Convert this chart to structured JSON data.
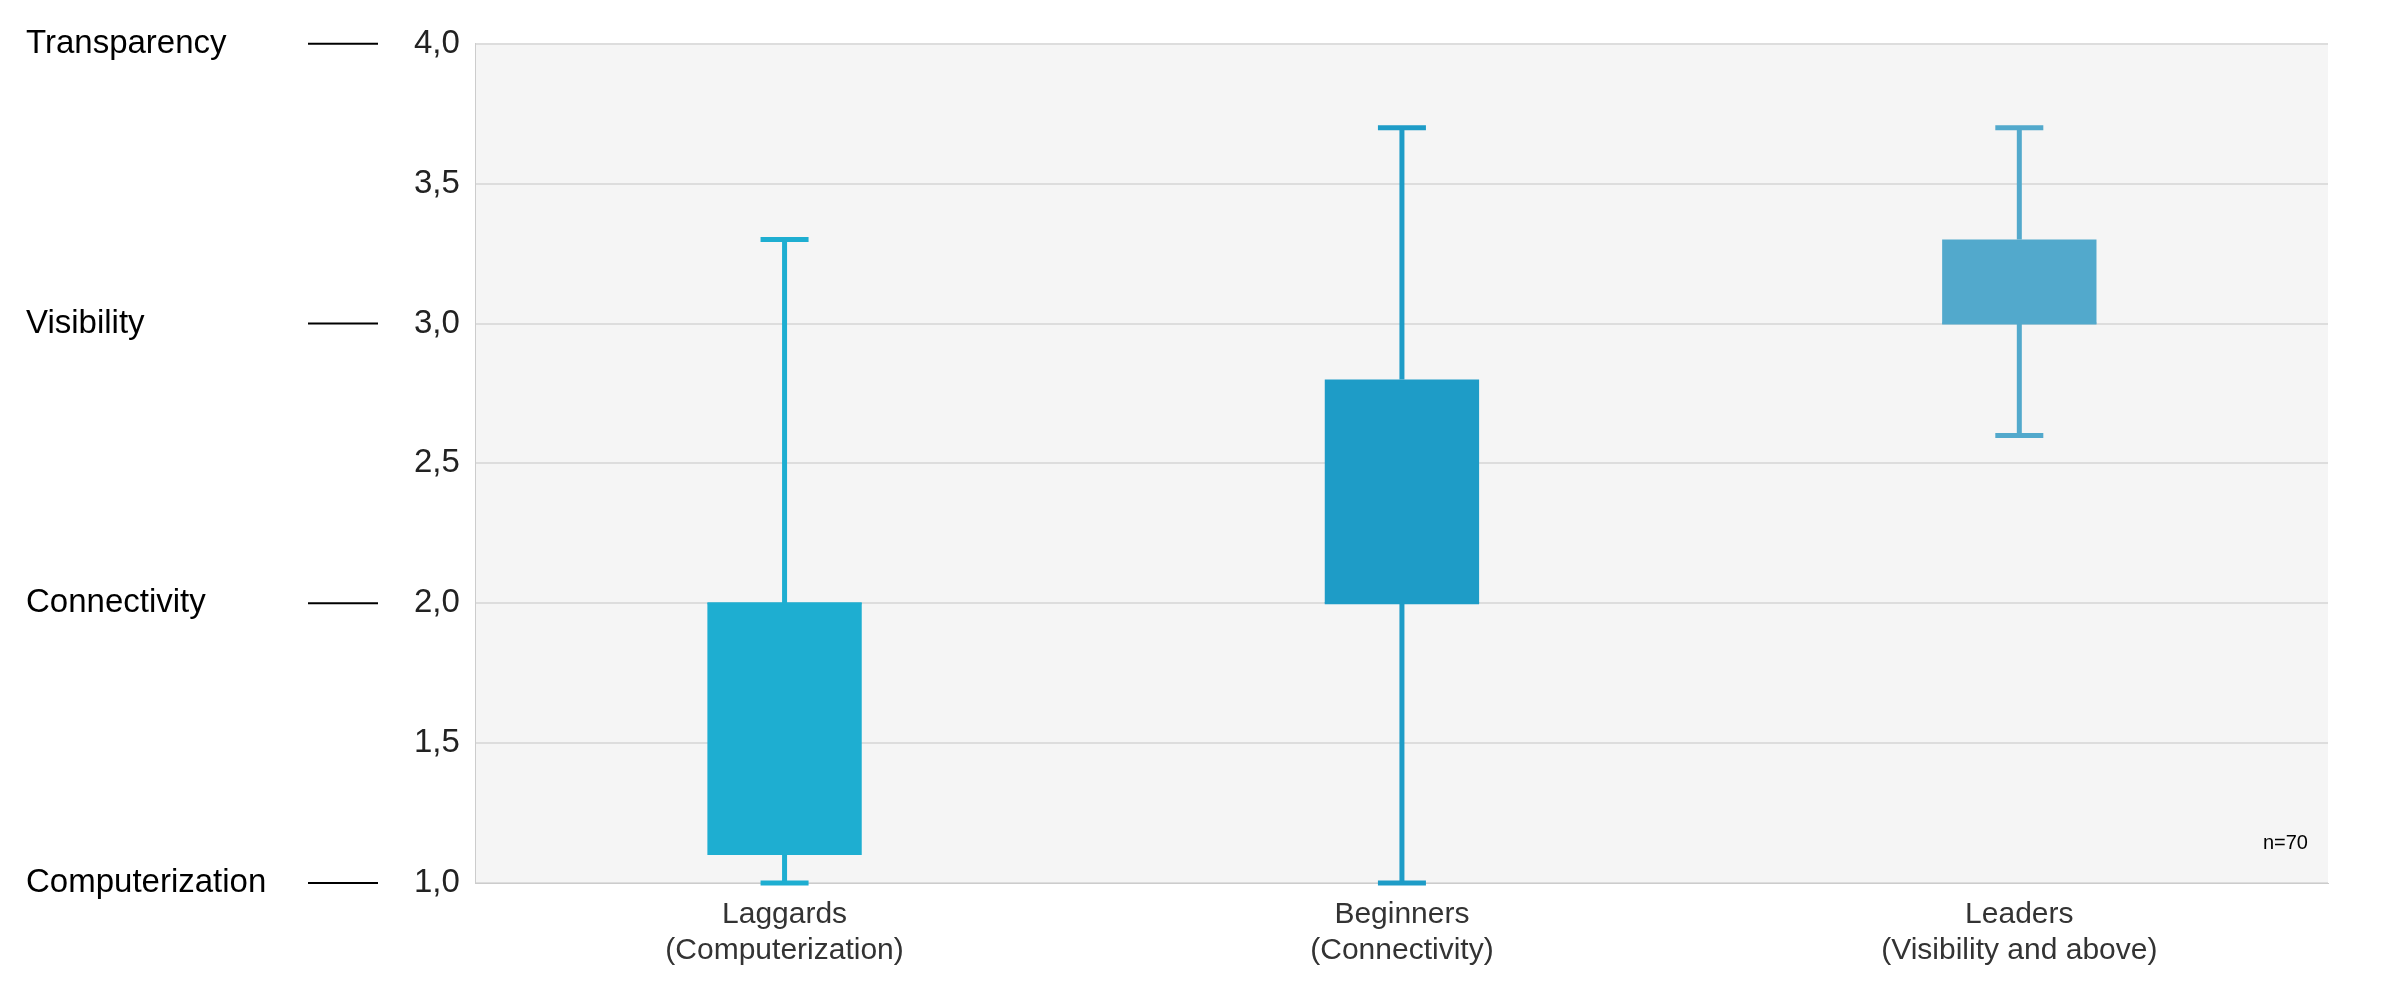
{
  "chart_data": {
    "type": "box",
    "categories": [
      "Laggards\n(Computerization)",
      "Beginners\n(Connectivity)",
      "Leaders\n(Visibility and above)"
    ],
    "boxes": [
      {
        "low": 1.0,
        "q1": 1.1,
        "median": 2.0,
        "q3": 2.0,
        "high": 3.3
      },
      {
        "low": 1.0,
        "q1": 2.0,
        "median": 2.0,
        "q3": 2.8,
        "high": 3.7
      },
      {
        "low": 2.6,
        "q1": 3.0,
        "median": 3.0,
        "q3": 3.3,
        "high": 3.7
      }
    ],
    "colors": [
      "#1eaed1",
      "#1e9cc7",
      "#52a9cc"
    ],
    "ylim": [
      1,
      4
    ],
    "yticks": [
      {
        "value": 1,
        "label": "1,0"
      },
      {
        "value": 1.5,
        "label": "1,5"
      },
      {
        "value": 2,
        "label": "2,0"
      },
      {
        "value": 2.5,
        "label": "2,5"
      },
      {
        "value": 3,
        "label": "3,0"
      },
      {
        "value": 3.5,
        "label": "3,5"
      },
      {
        "value": 4,
        "label": "4,0"
      }
    ],
    "grid": "y",
    "annotations": [
      "n=70",
      "Transparency",
      "Visibility",
      "Connectivity",
      "Computerization"
    ]
  }
}
